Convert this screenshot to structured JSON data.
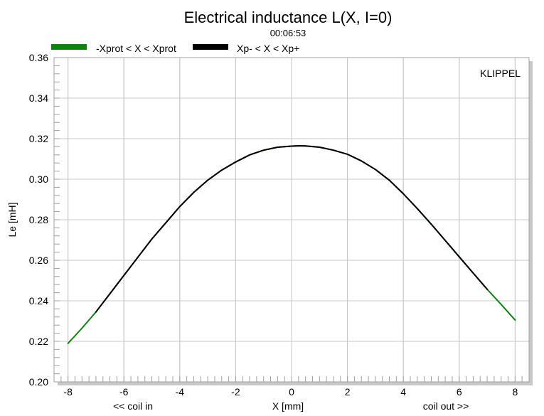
{
  "colors": {
    "protected_range": "#138013",
    "xp_range": "#000000",
    "grid": "#c8c8c8",
    "plot_border": "#a0a0a0",
    "shadow": "#c8c8c8"
  },
  "chart_data": {
    "type": "line",
    "title": "Electrical inductance L(X, I=0)",
    "subtitle": "00:06:53",
    "brand": "KLIPPEL",
    "xlabel": "X [mm]",
    "xlabel_left": "<< coil in",
    "xlabel_right": "coil out >>",
    "ylabel": "Le [mH]",
    "xlim": [
      -8.5,
      8.5
    ],
    "ylim": [
      0.2,
      0.36
    ],
    "xticks": [
      -8,
      -6,
      -4,
      -2,
      0,
      2,
      4,
      6,
      8
    ],
    "xtick_labels": [
      "-8",
      "-6",
      "-4",
      "-2",
      "0",
      "2",
      "4",
      "6",
      "8"
    ],
    "yticks": [
      0.2,
      0.22,
      0.24,
      0.26,
      0.28,
      0.3,
      0.32,
      0.34,
      0.36
    ],
    "ytick_labels": [
      "0.20",
      "0.22",
      "0.24",
      "0.26",
      "0.28",
      "0.30",
      "0.32",
      "0.34",
      "0.36"
    ],
    "grid": true,
    "legend_position": "top-left",
    "series": [
      {
        "name": "-Xprot < X < Xprot",
        "color": "#138013",
        "x": [
          -8,
          -7.5,
          -7,
          -6.5,
          -6,
          -5.5,
          -5,
          -4.5,
          -4,
          -3.5,
          -3,
          -2.5,
          -2,
          -1.5,
          -1,
          -0.5,
          0,
          0.3,
          0.5,
          1,
          1.5,
          2,
          2.5,
          3,
          3.5,
          4,
          4.5,
          5,
          5.5,
          6,
          6.5,
          7,
          7.5,
          8
        ],
        "y": [
          0.219,
          0.2265,
          0.2345,
          0.2435,
          0.2525,
          0.2615,
          0.2705,
          0.2785,
          0.2865,
          0.2935,
          0.2995,
          0.3045,
          0.3085,
          0.312,
          0.3143,
          0.3158,
          0.3163,
          0.3165,
          0.3164,
          0.3158,
          0.3143,
          0.3123,
          0.309,
          0.3048,
          0.2995,
          0.2928,
          0.2855,
          0.2778,
          0.2698,
          0.2617,
          0.2537,
          0.2457,
          0.2382,
          0.2305
        ]
      },
      {
        "name": "Xp- < X < Xp+",
        "color": "#000000",
        "x": [
          -7,
          -6.5,
          -6,
          -5.5,
          -5,
          -4.5,
          -4,
          -3.5,
          -3,
          -2.5,
          -2,
          -1.5,
          -1,
          -0.5,
          0,
          0.3,
          0.5,
          1,
          1.5,
          2,
          2.5,
          3,
          3.5,
          4,
          4.5,
          5,
          5.5,
          6,
          6.5,
          7
        ],
        "y": [
          0.2345,
          0.2435,
          0.2525,
          0.2615,
          0.2705,
          0.2785,
          0.2865,
          0.2935,
          0.2995,
          0.3045,
          0.3085,
          0.312,
          0.3143,
          0.3158,
          0.3163,
          0.3165,
          0.3164,
          0.3158,
          0.3143,
          0.3123,
          0.309,
          0.3048,
          0.2995,
          0.2928,
          0.2855,
          0.2778,
          0.2698,
          0.2617,
          0.2537,
          0.2457
        ]
      }
    ]
  }
}
